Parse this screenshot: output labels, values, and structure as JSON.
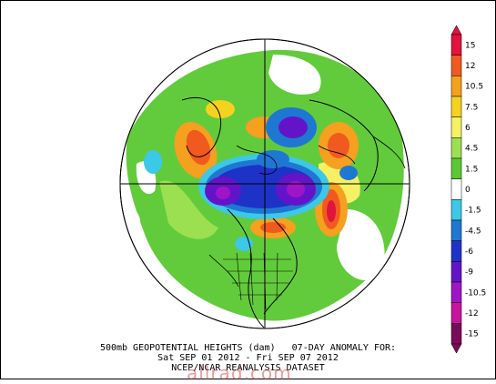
{
  "caption": {
    "line1": "500mb GEOPOTENTIAL HEIGHTS (dam)   07-DAY ANOMALY FOR:",
    "line2": "Sat SEP 01 2012 - Fri SEP 07 2012",
    "line3": "NCEP/NCAR REANALYSIS DATASET"
  },
  "watermark": "allrad.com",
  "colorbar": {
    "labels": [
      "15",
      "12",
      "10.5",
      "7.5",
      "6",
      "4.5",
      "1.5",
      "0",
      "-1.5",
      "-4.5",
      "-6",
      "-9",
      "-10.5",
      "-12",
      "-15"
    ],
    "colors": [
      "#e0143c",
      "#f05a1e",
      "#f5a01e",
      "#f5d21e",
      "#f5f064",
      "#9be050",
      "#5ac832",
      "#ffffff",
      "#3cc8e6",
      "#1e78d2",
      "#1e32c8",
      "#6414c8",
      "#a014c8",
      "#c814a0",
      "#7a0a5a"
    ],
    "colors_note_dummy": ""
  },
  "legend": {
    "positive_color": "#f5a01e",
    "negative_color": "#6414c8"
  }
}
